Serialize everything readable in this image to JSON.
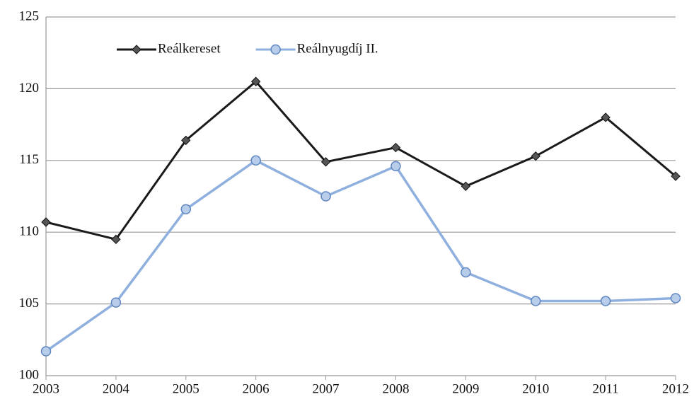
{
  "chart_data": {
    "type": "line",
    "categories": [
      "2003",
      "2004",
      "2005",
      "2006",
      "2007",
      "2008",
      "2009",
      "2010",
      "2011",
      "2012"
    ],
    "series": [
      {
        "name": "Reálkereset",
        "color": "#1a1a1a",
        "marker": "diamond",
        "values": [
          110.7,
          109.5,
          116.4,
          120.5,
          114.9,
          115.9,
          113.2,
          115.3,
          118.0,
          113.9
        ]
      },
      {
        "name": "Reálnyugdíj II.",
        "color": "#8fb0de",
        "marker": "circle",
        "values": [
          101.7,
          105.1,
          111.6,
          115.0,
          112.5,
          114.6,
          107.2,
          105.2,
          105.2,
          105.4
        ]
      }
    ],
    "ylim": [
      100,
      125
    ],
    "yticks": [
      100,
      105,
      110,
      115,
      120,
      125
    ],
    "grid": true,
    "legend": "top-left"
  }
}
